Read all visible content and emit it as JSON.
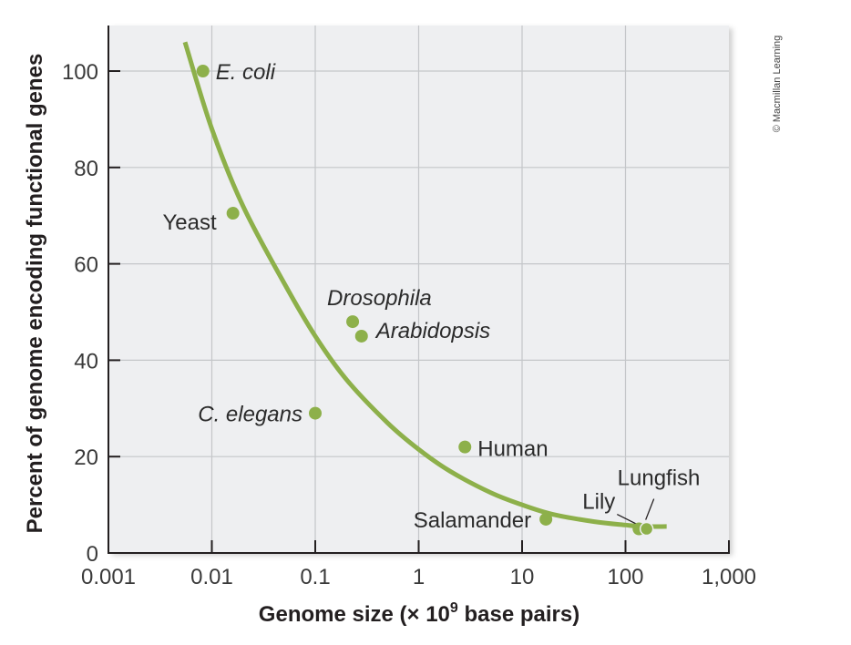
{
  "credit": "© Macmillan Learning",
  "colors": {
    "curve": "#8db04a",
    "point": "#8db04a",
    "plot_bg": "#eeeff1",
    "grid": "#c4c6c9",
    "axis": "#231f20"
  },
  "chart_data": {
    "type": "scatter",
    "title": "",
    "xlabel": "Genome size (× 10",
    "xlabel_sup": "9",
    "xlabel_tail": " base pairs)",
    "ylabel": "Percent of genome encoding functional genes",
    "xscale": "log",
    "xlim": [
      0.001,
      1000
    ],
    "ylim": [
      0,
      108
    ],
    "grid": true,
    "legend": null,
    "x_ticks": [
      "0.001",
      "0.01",
      "0.1",
      "1",
      "10",
      "100",
      "1,000"
    ],
    "x_tick_values": [
      0.001,
      0.01,
      0.1,
      1,
      10,
      100,
      1000
    ],
    "y_ticks": [
      "0",
      "20",
      "40",
      "60",
      "80",
      "100"
    ],
    "y_tick_values": [
      0,
      20,
      40,
      60,
      80,
      100
    ],
    "points": [
      {
        "label": "E. coli",
        "italic": true,
        "x": 0.0082,
        "y": 100
      },
      {
        "label": "Yeast",
        "italic": false,
        "x": 0.016,
        "y": 70.5
      },
      {
        "label": "Drosophila",
        "italic": true,
        "x": 0.23,
        "y": 48
      },
      {
        "label": "Arabidopsis",
        "italic": true,
        "x": 0.28,
        "y": 45
      },
      {
        "label": "C. elegans",
        "italic": true,
        "x": 0.1,
        "y": 29
      },
      {
        "label": "Human",
        "italic": false,
        "x": 2.8,
        "y": 22
      },
      {
        "label": "Salamander",
        "italic": false,
        "x": 17,
        "y": 7
      },
      {
        "label": "Lily",
        "italic": false,
        "x": 135,
        "y": 5
      },
      {
        "label": "Lungfish",
        "italic": false,
        "x": 160,
        "y": 5
      }
    ],
    "trend_curve": {
      "description": "Fitted decreasing curve from ~0.006 to ~250 (x10^9 bp)",
      "x": [
        0.0055,
        0.01,
        0.02,
        0.05,
        0.1,
        0.2,
        0.5,
        1,
        2,
        5,
        10,
        20,
        50,
        100,
        150,
        250
      ],
      "y": [
        106,
        88,
        72,
        56,
        45,
        36,
        27,
        21.5,
        17,
        12.5,
        10,
        8,
        6.5,
        5.8,
        5.5,
        5.5
      ]
    }
  }
}
